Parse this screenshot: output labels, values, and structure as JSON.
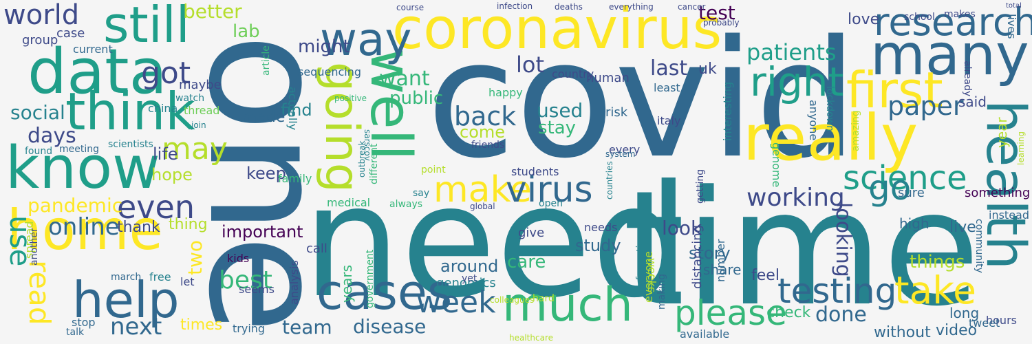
{
  "palette": {
    "background": "#f5f5f5",
    "dark_purple": "#440154",
    "indigo": "#3e4a89",
    "steel_blue": "#31688e",
    "teal": "#26828e",
    "green_teal": "#1f9e89",
    "green": "#35b779",
    "light_green": "#6ece58",
    "yellow_green": "#b5de2b",
    "yellow": "#fde725"
  },
  "words": [
    {
      "text": "covid",
      "color": "#31688e"
    },
    {
      "text": "time",
      "color": "#26828e"
    },
    {
      "text": "one",
      "color": "#31688e"
    },
    {
      "text": "need",
      "color": "#26828e"
    },
    {
      "text": "coronavirus",
      "color": "#fde725"
    },
    {
      "text": "really",
      "color": "#fde725"
    },
    {
      "text": "data",
      "color": "#1f9e89"
    },
    {
      "text": "know",
      "color": "#1f9e89"
    },
    {
      "text": "home",
      "color": "#fde725"
    },
    {
      "text": "health",
      "color": "#26828e"
    },
    {
      "text": "many",
      "color": "#31688e"
    },
    {
      "text": "well",
      "color": "#35b779"
    },
    {
      "text": "still",
      "color": "#1f9e89"
    },
    {
      "text": "think",
      "color": "#1f9e89"
    },
    {
      "text": "going",
      "color": "#b5de2b"
    },
    {
      "text": "much",
      "color": "#35b779"
    },
    {
      "text": "help",
      "color": "#31688e"
    },
    {
      "text": "cases",
      "color": "#31688e"
    },
    {
      "text": "first",
      "color": "#fde725"
    },
    {
      "text": "way",
      "color": "#31688e"
    },
    {
      "text": "research",
      "color": "#31688e"
    },
    {
      "text": "right",
      "color": "#1f9e89"
    },
    {
      "text": "make",
      "color": "#fde725"
    },
    {
      "text": "virus",
      "color": "#31688e"
    },
    {
      "text": "please",
      "color": "#35b779"
    },
    {
      "text": "testing",
      "color": "#31688e"
    },
    {
      "text": "take",
      "color": "#fde725"
    },
    {
      "text": "science",
      "color": "#1f9e89"
    },
    {
      "text": "week",
      "color": "#31688e"
    },
    {
      "text": "world",
      "color": "#3e4a89"
    },
    {
      "text": "go",
      "color": "#26828e"
    },
    {
      "text": "paper",
      "color": "#31688e"
    },
    {
      "text": "even",
      "color": "#3e4a89"
    },
    {
      "text": "may",
      "color": "#b5de2b"
    },
    {
      "text": "use",
      "color": "#1f9e89"
    },
    {
      "text": "read",
      "color": "#fde725"
    },
    {
      "text": "got",
      "color": "#3e4a89"
    },
    {
      "text": "back",
      "color": "#31688e"
    },
    {
      "text": "working",
      "color": "#3e4a89"
    },
    {
      "text": "patients",
      "color": "#1f9e89"
    },
    {
      "text": "lot",
      "color": "#3e4a89"
    },
    {
      "text": "best",
      "color": "#35b779"
    },
    {
      "text": "next",
      "color": "#31688e"
    },
    {
      "text": "online",
      "color": "#31688e"
    },
    {
      "text": "pandemic",
      "color": "#fde725"
    },
    {
      "text": "social",
      "color": "#26828e"
    },
    {
      "text": "days",
      "color": "#3e4a89"
    },
    {
      "text": "better",
      "color": "#b5de2b"
    },
    {
      "text": "want",
      "color": "#35b779"
    },
    {
      "text": "might",
      "color": "#3e4a89"
    },
    {
      "text": "public",
      "color": "#35b779"
    },
    {
      "text": "disease",
      "color": "#31688e"
    },
    {
      "text": "looking",
      "color": "#3e4a89"
    },
    {
      "text": "done",
      "color": "#31688e"
    },
    {
      "text": "last",
      "color": "#3e4a89"
    },
    {
      "text": "love",
      "color": "#3e4a89"
    },
    {
      "text": "test",
      "color": "#440154"
    },
    {
      "text": "lab",
      "color": "#6ece58"
    },
    {
      "text": "uk",
      "color": "#3e4a89"
    },
    {
      "text": "used",
      "color": "#26828e"
    },
    {
      "text": "stay",
      "color": "#35b779"
    },
    {
      "text": "come",
      "color": "#b5de2b"
    },
    {
      "text": "find",
      "color": "#26828e"
    },
    {
      "text": "made",
      "color": "#31688e"
    },
    {
      "text": "keep",
      "color": "#3e4a89"
    },
    {
      "text": "hope",
      "color": "#b5de2b"
    },
    {
      "text": "life",
      "color": "#3e4a89"
    },
    {
      "text": "important",
      "color": "#440154"
    },
    {
      "text": "around",
      "color": "#31688e"
    },
    {
      "text": "care",
      "color": "#35b779"
    },
    {
      "text": "things",
      "color": "#b5de2b"
    },
    {
      "text": "team",
      "color": "#31688e"
    },
    {
      "text": "times",
      "color": "#fde725"
    },
    {
      "text": "video",
      "color": "#31688e"
    },
    {
      "text": "without",
      "color": "#31688e"
    },
    {
      "text": "check",
      "color": "#35b779"
    },
    {
      "text": "available",
      "color": "#31688e"
    },
    {
      "text": "genomics",
      "color": "#26828e"
    },
    {
      "text": "thank",
      "color": "#3e4a89"
    },
    {
      "text": "two",
      "color": "#fde725"
    },
    {
      "text": "thing",
      "color": "#b5de2b"
    },
    {
      "text": "look",
      "color": "#3e4a89"
    },
    {
      "text": "story",
      "color": "#31688e"
    },
    {
      "text": "feel",
      "color": "#3e4a89"
    },
    {
      "text": "share",
      "color": "#31688e"
    },
    {
      "text": "study",
      "color": "#31688e"
    },
    {
      "text": "live",
      "color": "#31688e"
    },
    {
      "text": "high",
      "color": "#31688e"
    },
    {
      "text": "sure",
      "color": "#31688e"
    },
    {
      "text": "long",
      "color": "#31688e"
    },
    {
      "text": "said",
      "color": "#3e4a89"
    },
    {
      "text": "year",
      "color": "#b5de2b"
    },
    {
      "text": "something",
      "color": "#440154"
    },
    {
      "text": "instead",
      "color": "#31688e"
    },
    {
      "text": "hours",
      "color": "#3e4a89"
    },
    {
      "text": "tweet",
      "color": "#31688e"
    },
    {
      "text": "lives",
      "color": "#31688e"
    },
    {
      "text": "total",
      "color": "#3e4a89"
    },
    {
      "text": "group",
      "color": "#3e4a89"
    },
    {
      "text": "case",
      "color": "#3e4a89"
    },
    {
      "text": "current",
      "color": "#31688e"
    },
    {
      "text": "maybe",
      "color": "#3e4a89"
    },
    {
      "text": "watch",
      "color": "#26828e"
    },
    {
      "text": "china",
      "color": "#26828e"
    },
    {
      "text": "thread",
      "color": "#6ece58"
    },
    {
      "text": "join",
      "color": "#26828e"
    },
    {
      "text": "country",
      "color": "#3e4a89"
    },
    {
      "text": "human",
      "color": "#3e4a89"
    },
    {
      "text": "risk",
      "color": "#31688e"
    },
    {
      "text": "italy",
      "color": "#3e4a89"
    },
    {
      "text": "least",
      "color": "#31688e"
    },
    {
      "text": "happy",
      "color": "#35b779"
    },
    {
      "text": "every",
      "color": "#3e4a89"
    },
    {
      "text": "system",
      "color": "#31688e"
    },
    {
      "text": "students",
      "color": "#3e4a89"
    },
    {
      "text": "family",
      "color": "#35b779"
    },
    {
      "text": "point",
      "color": "#b5de2b"
    },
    {
      "text": "medical",
      "color": "#35b779"
    },
    {
      "text": "always",
      "color": "#35b779"
    },
    {
      "text": "say",
      "color": "#26828e"
    },
    {
      "text": "open",
      "color": "#26828e"
    },
    {
      "text": "global",
      "color": "#3e4a89"
    },
    {
      "text": "give",
      "color": "#3e4a89"
    },
    {
      "text": "needs",
      "color": "#3e4a89"
    },
    {
      "text": "kids",
      "color": "#440154"
    },
    {
      "text": "seems",
      "color": "#3e4a89"
    },
    {
      "text": "let",
      "color": "#3e4a89"
    },
    {
      "text": "free",
      "color": "#26828e"
    },
    {
      "text": "call",
      "color": "#3e4a89"
    },
    {
      "text": "yet",
      "color": "#3e4a89"
    },
    {
      "text": "hard",
      "color": "#b5de2b"
    },
    {
      "text": "trying",
      "color": "#31688e"
    },
    {
      "text": "spread",
      "color": "#b5de2b"
    },
    {
      "text": "march",
      "color": "#31688e"
    },
    {
      "text": "stop",
      "color": "#31688e"
    },
    {
      "text": "talk",
      "color": "#31688e"
    },
    {
      "text": "meeting",
      "color": "#31688e"
    },
    {
      "text": "scientists",
      "color": "#26828e"
    },
    {
      "text": "found",
      "color": "#26828e"
    },
    {
      "text": "sequencing",
      "color": "#31688e"
    },
    {
      "text": "actually",
      "color": "#26828e"
    },
    {
      "text": "article",
      "color": "#35b779"
    },
    {
      "text": "friends",
      "color": "#3e4a89"
    },
    {
      "text": "distancing",
      "color": "#3e4a89"
    },
    {
      "text": "number",
      "color": "#31688e"
    },
    {
      "text": "anyone",
      "color": "#31688e"
    },
    {
      "text": "genome",
      "color": "#35b779"
    },
    {
      "text": "interesting",
      "color": "#26828e"
    },
    {
      "text": "lockdown",
      "color": "#26828e"
    },
    {
      "text": "already",
      "color": "#3e4a89"
    },
    {
      "text": "community",
      "color": "#31688e"
    },
    {
      "text": "everyone",
      "color": "#b5de2b"
    },
    {
      "text": "weeks",
      "color": "#b5de2b"
    },
    {
      "text": "information",
      "color": "#26828e"
    },
    {
      "text": "making",
      "color": "#31688e"
    },
    {
      "text": "getting",
      "color": "#3e4a89"
    },
    {
      "text": "years",
      "color": "#35b779"
    },
    {
      "text": "analysis",
      "color": "#3e4a89"
    },
    {
      "text": "another",
      "color": "#3e4a89"
    },
    {
      "text": "different",
      "color": "#35b779"
    },
    {
      "text": "government",
      "color": "#35b779"
    },
    {
      "text": "colleagues",
      "color": "#b5de2b"
    },
    {
      "text": "healthcare",
      "color": "#b5de2b"
    },
    {
      "text": "amazing",
      "color": "#b5de2b"
    },
    {
      "text": "school",
      "color": "#3e4a89"
    },
    {
      "text": "makes",
      "color": "#3e4a89"
    },
    {
      "text": "learning",
      "color": "#b5de2b"
    },
    {
      "text": "countries",
      "color": "#26828e"
    },
    {
      "text": "infection",
      "color": "#3e4a89"
    },
    {
      "text": "deaths",
      "color": "#3e4a89"
    },
    {
      "text": "course",
      "color": "#3e4a89"
    },
    {
      "text": "everything",
      "color": "#3e4a89"
    },
    {
      "text": "cancer",
      "color": "#3e4a89"
    },
    {
      "text": "probably",
      "color": "#3e4a89"
    },
    {
      "text": "outbreak",
      "color": "#26828e"
    },
    {
      "text": "positive",
      "color": "#35b779"
    },
    {
      "text": "sarscov",
      "color": "#26828e"
    }
  ]
}
